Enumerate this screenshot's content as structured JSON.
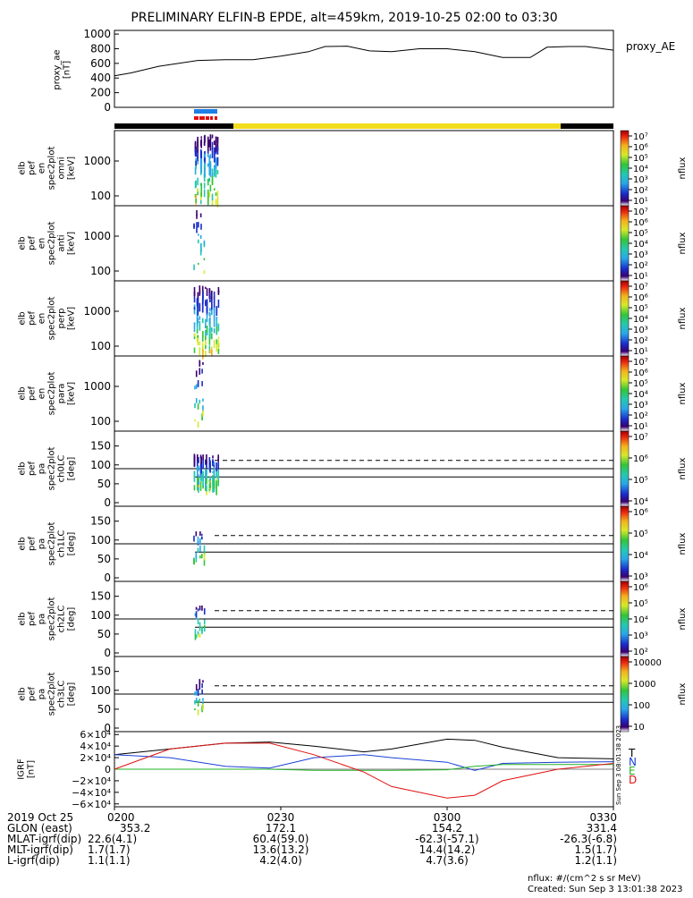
{
  "title": "PRELIMINARY ELFIN-B EPDE, alt=459km, 2019-10-25 02:00 to 03:30",
  "colors": {
    "blue_bar": "#1e7fe6",
    "red_bar": "#e01010",
    "black_bar": "#000000",
    "yellow_bar": "#f2dc1e"
  },
  "proxy_panel": {
    "ylabel_lines": [
      "proxy_ae",
      "[nT]"
    ],
    "legend": "proxy_AE",
    "yticks": [
      "1000",
      "800",
      "600",
      "400",
      "200",
      "0"
    ]
  },
  "energy_panels": [
    {
      "ylabel_lines": [
        "elb",
        "pef",
        "en",
        "spec2plot",
        "omni",
        "[keV]"
      ],
      "yticks": [
        "1000",
        "100"
      ],
      "cbar_ticks": [
        "10⁷",
        "10⁶",
        "10⁵",
        "10⁴",
        "10³",
        "10²",
        "10¹"
      ],
      "cbar_label": "nflux"
    },
    {
      "ylabel_lines": [
        "elb",
        "pef",
        "en",
        "spec2plot",
        "anti",
        "[keV]"
      ],
      "yticks": [
        "1000",
        "100"
      ],
      "cbar_ticks": [
        "10⁷",
        "10⁶",
        "10⁵",
        "10⁴",
        "10³",
        "10²",
        "10¹"
      ],
      "cbar_label": "nflux"
    },
    {
      "ylabel_lines": [
        "elb",
        "pef",
        "en",
        "spec2plot",
        "perp",
        "[keV]"
      ],
      "yticks": [
        "1000",
        "100"
      ],
      "cbar_ticks": [
        "10⁷",
        "10⁶",
        "10⁵",
        "10⁴",
        "10³",
        "10²",
        "10¹"
      ],
      "cbar_label": "nflux"
    },
    {
      "ylabel_lines": [
        "elb",
        "pef",
        "en",
        "spec2plot",
        "para",
        "[keV]"
      ],
      "yticks": [
        "1000",
        "100"
      ],
      "cbar_ticks": [
        "10⁷",
        "10⁶",
        "10⁵",
        "10⁴",
        "10³",
        "10²",
        "10¹"
      ],
      "cbar_label": "nflux"
    }
  ],
  "pa_panels": [
    {
      "ylabel_lines": [
        "elb",
        "pef",
        "pa",
        "spec2plot",
        "ch0LC",
        "[deg]"
      ],
      "yticks": [
        "150",
        "100",
        "50",
        "0"
      ],
      "cbar_ticks": [
        "10⁷",
        "10⁶",
        "10⁵",
        "10⁴"
      ],
      "cbar_label": "nflux"
    },
    {
      "ylabel_lines": [
        "elb",
        "pef",
        "pa",
        "spec2plot",
        "ch1LC",
        "[deg]"
      ],
      "yticks": [
        "150",
        "100",
        "50",
        "0"
      ],
      "cbar_ticks": [
        "10⁶",
        "10⁵",
        "10⁴",
        "10³"
      ],
      "cbar_label": "nflux"
    },
    {
      "ylabel_lines": [
        "elb",
        "pef",
        "pa",
        "spec2plot",
        "ch2LC",
        "[deg]"
      ],
      "yticks": [
        "150",
        "100",
        "50",
        "0"
      ],
      "cbar_ticks": [
        "10⁶",
        "10⁵",
        "10⁴",
        "10³",
        "10²"
      ],
      "cbar_label": "nflux"
    },
    {
      "ylabel_lines": [
        "elb",
        "pef",
        "pa",
        "spec2plot",
        "ch3LC",
        "[deg]"
      ],
      "yticks": [
        "150",
        "100",
        "50",
        "0"
      ],
      "cbar_ticks": [
        "10000",
        "1000",
        "100",
        "10"
      ],
      "cbar_label": "nflux"
    }
  ],
  "igrf_panel": {
    "ylabel_lines": [
      "IGRF",
      "[nT]"
    ],
    "yticks": [
      "6×10⁴",
      "4×10⁴",
      "2×10⁴",
      "0",
      "−2×10⁴",
      "−4×10⁴",
      "−6×10⁴"
    ],
    "legend": [
      {
        "label": "T",
        "color": "#000000"
      },
      {
        "label": "N",
        "color": "#1a3fd6"
      },
      {
        "label": "E",
        "color": "#22b022"
      },
      {
        "label": "D",
        "color": "#e01010"
      }
    ],
    "side_text": "Sun Sep  3 08:01:38 2023"
  },
  "chart_data": {
    "type": "line",
    "title": "PRELIMINARY ELFIN-B EPDE, alt=459km, 2019-10-25 02:00 to 03:30",
    "xlim": [
      "02:00",
      "03:30"
    ],
    "series": [
      {
        "name": "proxy_AE",
        "x": [
          0,
          3,
          8,
          15,
          20,
          25,
          30,
          35,
          38,
          42,
          46,
          50,
          55,
          60,
          65,
          70,
          75,
          78,
          82,
          85,
          90
        ],
        "values": [
          430,
          470,
          560,
          640,
          650,
          650,
          700,
          760,
          830,
          835,
          770,
          760,
          800,
          800,
          760,
          680,
          680,
          820,
          830,
          830,
          780
        ]
      }
    ],
    "igrf": {
      "x": [
        0,
        10,
        20,
        28,
        36,
        45,
        50,
        60,
        65,
        70,
        80,
        90
      ],
      "T": [
        25000,
        35000,
        45000,
        47000,
        40000,
        30000,
        35000,
        52000,
        50000,
        38000,
        20000,
        18000
      ],
      "N": [
        25000,
        20000,
        5000,
        2000,
        20000,
        25000,
        20000,
        12000,
        -2000,
        10000,
        12000,
        13000
      ],
      "E": [
        0,
        0,
        0,
        0,
        -2000,
        -2000,
        -2000,
        -1000,
        5000,
        8000,
        8000,
        8000
      ],
      "D": [
        0,
        35000,
        45000,
        45000,
        25000,
        -5000,
        -30000,
        -50000,
        -45000,
        -20000,
        0,
        10000
      ]
    }
  },
  "ephemeris": {
    "labels": [
      "2019 Oct 25",
      "GLON (east)",
      "MLAT-igrf(dip)",
      "MLT-igrf(dip)",
      "L-igrf(dip)"
    ],
    "columns": [
      {
        "time": "0200",
        "values": [
          "353.2",
          "22.6(4.1)",
          "1.7(1.7)",
          "1.1(1.1)"
        ]
      },
      {
        "time": "0230",
        "values": [
          "172.1",
          "60.4(59.0)",
          "13.6(13.2)",
          "4.2(4.0)"
        ]
      },
      {
        "time": "0300",
        "values": [
          "154.2",
          "-62.3(-57.1)",
          "14.4(14.2)",
          "4.7(3.6)"
        ]
      },
      {
        "time": "0330",
        "values": [
          "331.4",
          "-26.3(-6.8)",
          "1.5(1.7)",
          "1.2(1.1)"
        ]
      }
    ]
  },
  "footer": {
    "units": "nflux: #/(cm^2 s sr MeV)",
    "created": "Created: Sun Sep  3 13:01:38 2023"
  }
}
